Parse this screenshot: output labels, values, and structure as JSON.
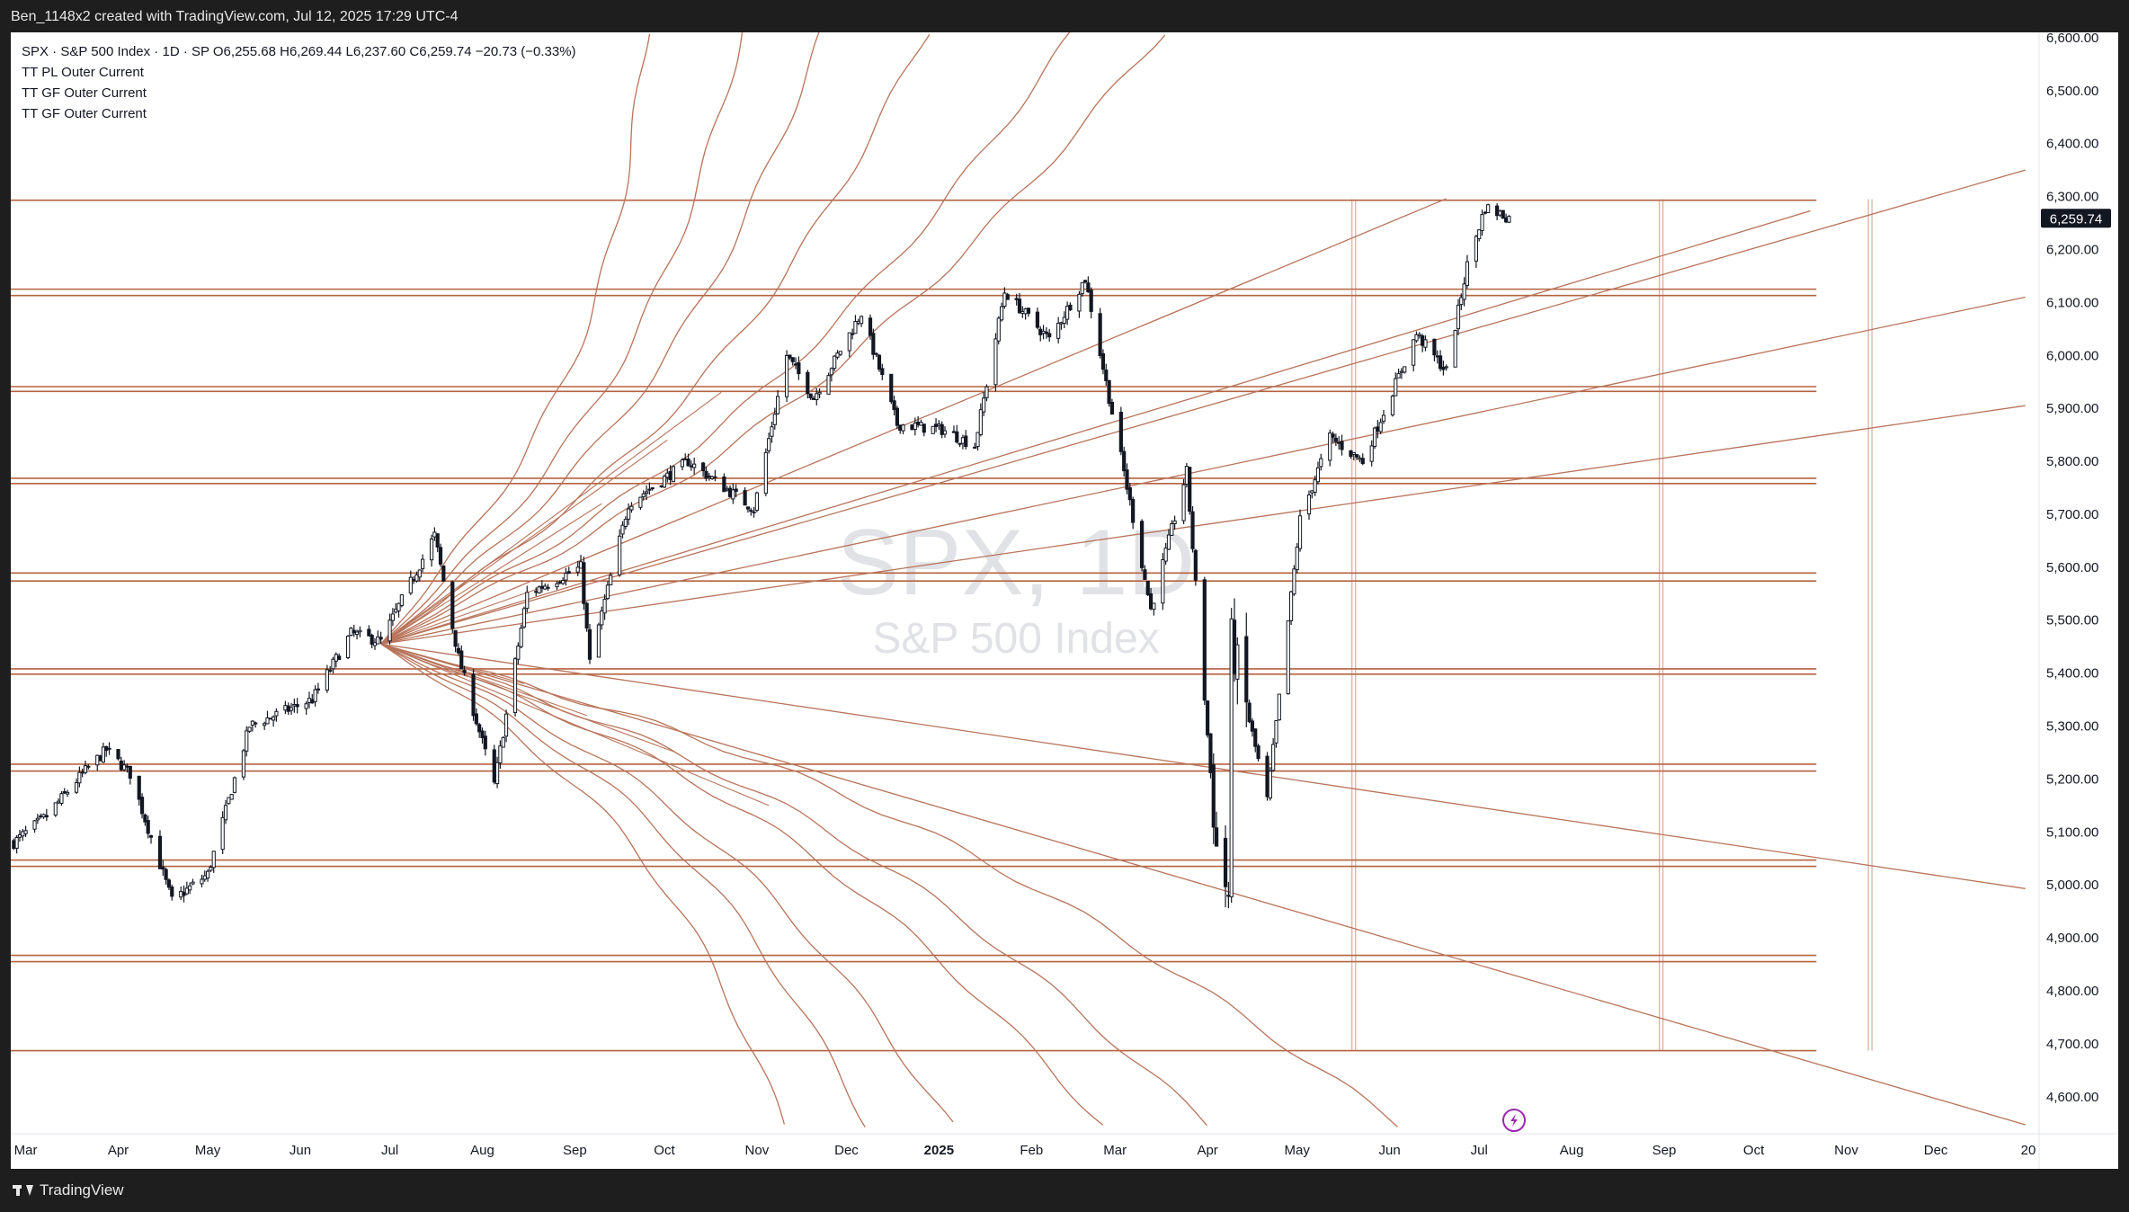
{
  "header": {
    "caption": "Ben_1148x2 created with TradingView.com, Jul 12, 2025 17:29 UTC-4"
  },
  "legend": {
    "symbol_line": "SPX · S&P 500 Index · 1D · SP  O6,255.68  H6,269.44  L6,237.60  C6,259.74  −20.73 (−0.33%)",
    "indicators": [
      "TT PL Outer Current",
      "TT GF Outer Current",
      "TT GF Outer Current"
    ]
  },
  "watermark": {
    "symbol": "SPX, 1D",
    "name": "S&P 500 Index"
  },
  "footer": {
    "brand": "TradingView"
  },
  "colors": {
    "background": "#ffffff",
    "grid_line": "#b5623f",
    "fan_line": "#b8735a",
    "candle": "#131722",
    "price_tag": "#131722",
    "page": "#1e1e1e",
    "watermark": "#e1e2e6",
    "lightning": "#9c27b0"
  },
  "icons": {
    "events": "lightning-icon",
    "brand": "tradingview-logo-icon"
  },
  "chart_data": {
    "type": "candlestick",
    "symbol": "SPX",
    "interval": "1D",
    "ylim": [
      4530,
      6610
    ],
    "y_ticks": [
      "4,600.00",
      "4,700.00",
      "4,800.00",
      "4,900.00",
      "5,000.00",
      "5,100.00",
      "5,200.00",
      "5,300.00",
      "5,400.00",
      "5,500.00",
      "5,600.00",
      "5,700.00",
      "5,800.00",
      "5,900.00",
      "6,000.00",
      "6,100.00",
      "6,200.00",
      "6,300.00",
      "6,400.00",
      "6,500.00",
      "6,600.00"
    ],
    "x_axis": {
      "range": [
        "2024-02-25",
        "2026-01-01"
      ],
      "ticks": [
        {
          "date": "2024-03-01",
          "label": "Mar"
        },
        {
          "date": "2024-04-01",
          "label": "Apr"
        },
        {
          "date": "2024-05-01",
          "label": "May"
        },
        {
          "date": "2024-06-01",
          "label": "Jun"
        },
        {
          "date": "2024-07-01",
          "label": "Jul"
        },
        {
          "date": "2024-08-01",
          "label": "Aug"
        },
        {
          "date": "2024-09-01",
          "label": "Sep"
        },
        {
          "date": "2024-10-01",
          "label": "Oct"
        },
        {
          "date": "2024-11-01",
          "label": "Nov"
        },
        {
          "date": "2024-12-01",
          "label": "Dec"
        },
        {
          "date": "2025-01-01",
          "label": "2025",
          "bold": true
        },
        {
          "date": "2025-02-01",
          "label": "Feb"
        },
        {
          "date": "2025-03-01",
          "label": "Mar"
        },
        {
          "date": "2025-04-01",
          "label": "Apr"
        },
        {
          "date": "2025-05-01",
          "label": "May"
        },
        {
          "date": "2025-06-01",
          "label": "Jun"
        },
        {
          "date": "2025-07-01",
          "label": "Jul"
        },
        {
          "date": "2025-08-01",
          "label": "Aug"
        },
        {
          "date": "2025-09-01",
          "label": "Sep"
        },
        {
          "date": "2025-10-01",
          "label": "Oct"
        },
        {
          "date": "2025-11-01",
          "label": "Nov"
        },
        {
          "date": "2025-12-01",
          "label": "Dec"
        },
        {
          "date": "2026-01-01",
          "label": "20"
        }
      ]
    },
    "last_price": {
      "value": 6259.74,
      "label": "6,259.74"
    },
    "price_path": [
      [
        "2024-02-26",
        5080
      ],
      [
        "2024-03-08",
        5130
      ],
      [
        "2024-03-20",
        5210
      ],
      [
        "2024-03-28",
        5255
      ],
      [
        "2024-04-05",
        5210
      ],
      [
        "2024-04-19",
        4970
      ],
      [
        "2024-05-01",
        5020
      ],
      [
        "2024-05-15",
        5300
      ],
      [
        "2024-06-05",
        5350
      ],
      [
        "2024-06-18",
        5475
      ],
      [
        "2024-06-28",
        5460
      ],
      [
        "2024-07-16",
        5660
      ],
      [
        "2024-07-24",
        5430
      ],
      [
        "2024-08-05",
        5190
      ],
      [
        "2024-08-16",
        5550
      ],
      [
        "2024-09-03",
        5600
      ],
      [
        "2024-09-06",
        5420
      ],
      [
        "2024-09-19",
        5720
      ],
      [
        "2024-10-09",
        5800
      ],
      [
        "2024-10-31",
        5710
      ],
      [
        "2024-11-11",
        6000
      ],
      [
        "2024-11-20",
        5920
      ],
      [
        "2024-12-06",
        6080
      ],
      [
        "2024-12-18",
        5870
      ],
      [
        "2025-01-02",
        5860
      ],
      [
        "2025-01-13",
        5830
      ],
      [
        "2025-01-23",
        6120
      ],
      [
        "2025-02-07",
        6030
      ],
      [
        "2025-02-19",
        6145
      ],
      [
        "2025-03-04",
        5780
      ],
      [
        "2025-03-13",
        5520
      ],
      [
        "2025-03-25",
        5780
      ],
      [
        "2025-04-04",
        5070
      ],
      [
        "2025-04-08",
        4980
      ],
      [
        "2025-04-09",
        5460
      ],
      [
        "2025-04-21",
        5160
      ],
      [
        "2025-05-02",
        5690
      ],
      [
        "2025-05-12",
        5845
      ],
      [
        "2025-05-23",
        5800
      ],
      [
        "2025-06-10",
        6040
      ],
      [
        "2025-06-20",
        5970
      ],
      [
        "2025-06-27",
        6170
      ],
      [
        "2025-07-03",
        6280
      ],
      [
        "2025-07-11",
        6259.74
      ]
    ],
    "horizontal_levels": [
      {
        "price": 6293,
        "dates": [
          "2024-02-25",
          "2025-10-22"
        ]
      },
      {
        "price": 6125,
        "dates": [
          "2024-02-25",
          "2025-10-22"
        ]
      },
      {
        "price": 6113,
        "dates": [
          "2024-02-25",
          "2025-10-22"
        ]
      },
      {
        "price": 5941,
        "dates": [
          "2024-02-25",
          "2025-10-22"
        ]
      },
      {
        "price": 5932,
        "dates": [
          "2024-02-25",
          "2025-10-22"
        ]
      },
      {
        "price": 5768,
        "dates": [
          "2024-02-25",
          "2025-10-22"
        ]
      },
      {
        "price": 5758,
        "dates": [
          "2024-02-25",
          "2025-10-22"
        ]
      },
      {
        "price": 5589,
        "dates": [
          "2024-02-25",
          "2025-10-22"
        ]
      },
      {
        "price": 5574,
        "dates": [
          "2024-02-25",
          "2025-10-22"
        ]
      },
      {
        "price": 5408,
        "dates": [
          "2024-02-25",
          "2025-10-22"
        ]
      },
      {
        "price": 5398,
        "dates": [
          "2024-02-25",
          "2025-10-22"
        ]
      },
      {
        "price": 5228,
        "dates": [
          "2024-02-25",
          "2025-10-22"
        ]
      },
      {
        "price": 5215,
        "dates": [
          "2024-02-25",
          "2025-10-22"
        ]
      },
      {
        "price": 5047,
        "dates": [
          "2024-02-25",
          "2025-10-22"
        ]
      },
      {
        "price": 5035,
        "dates": [
          "2024-02-25",
          "2025-10-22"
        ]
      },
      {
        "price": 4867,
        "dates": [
          "2024-02-25",
          "2025-10-22"
        ]
      },
      {
        "price": 4855,
        "dates": [
          "2024-02-25",
          "2025-10-22"
        ]
      },
      {
        "price": 4687,
        "dates": [
          "2024-02-25",
          "2025-10-22"
        ]
      }
    ],
    "vertical_levels": [
      {
        "date": "2025-05-20",
        "prices": [
          4687,
          6295
        ]
      },
      {
        "date": "2025-08-31",
        "prices": [
          4687,
          6295
        ]
      },
      {
        "date": "2025-11-09",
        "prices": [
          4687,
          6295
        ]
      }
    ],
    "fan": {
      "origin": [
        "2024-06-28",
        5455
      ],
      "curved_up": [
        [
          "2024-09-25",
          6610
        ],
        [
          "2024-10-27",
          6610
        ],
        [
          "2024-11-23",
          6610
        ],
        [
          "2024-12-28",
          6610
        ],
        [
          "2025-02-15",
          6610
        ],
        [
          "2025-03-17",
          6610
        ]
      ],
      "straight": [
        [
          "2025-06-20",
          6296
        ],
        [
          "2025-10-20",
          6273
        ],
        [
          "2025-12-31",
          6350
        ],
        [
          "2025-12-31",
          6110
        ],
        [
          "2025-12-31",
          5905
        ],
        [
          "2025-12-31",
          4993
        ],
        [
          "2025-12-31",
          4547
        ]
      ],
      "curved_down": [
        [
          "2025-06-04",
          4547
        ],
        [
          "2025-04-01",
          4547
        ],
        [
          "2025-02-25",
          4547
        ],
        [
          "2025-01-05",
          4547
        ],
        [
          "2024-12-08",
          4547
        ],
        [
          "2024-11-10",
          4547
        ]
      ],
      "extra": [
        [
          "2024-08-20",
          5560
        ],
        [
          "2024-09-10",
          5720
        ],
        [
          "2024-10-02",
          5840
        ],
        [
          "2024-10-20",
          5930
        ],
        [
          "2024-08-15",
          5380
        ],
        [
          "2024-09-05",
          5320
        ],
        [
          "2024-10-05",
          5250
        ],
        [
          "2024-11-05",
          5150
        ]
      ]
    }
  }
}
